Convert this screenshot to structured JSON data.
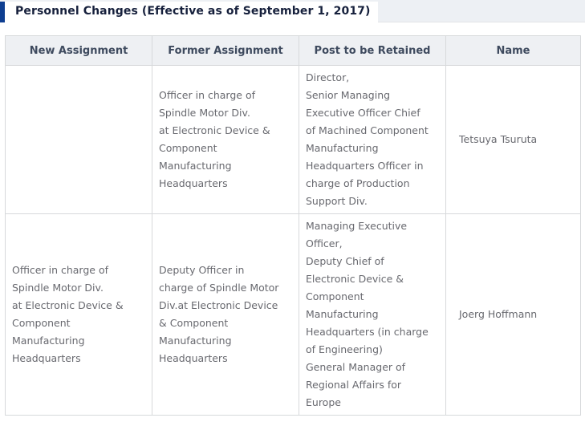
{
  "title": "Personnel Changes (Effective as of September 1, 2017)",
  "colors": {
    "accent_bar_blue": "#0e3e91",
    "title_text": "#16203c",
    "title_band_background": "#edf0f4",
    "table_header_background": "#eef0f3",
    "table_header_text": "#3e4a5e",
    "table_border": "#d7d9db",
    "cell_text": "#68696f"
  },
  "table": {
    "columns": [
      "New Assignment",
      "Former Assignment",
      "Post to be Retained",
      "Name"
    ],
    "rows": [
      {
        "new_assignment": "",
        "former_assignment": "Officer in charge of\nSpindle Motor Div.\nat Electronic Device &\nComponent\nManufacturing\nHeadquarters",
        "post_to_be_retained": "Director,\nSenior Managing\nExecutive Officer Chief\nof Machined Component\nManufacturing\nHeadquarters Officer in\ncharge of Production\nSupport Div.",
        "name": "Tetsuya Tsuruta"
      },
      {
        "new_assignment": "Officer in charge of\nSpindle Motor Div.\nat Electronic Device &\nComponent\nManufacturing\nHeadquarters",
        "former_assignment": "Deputy Officer in\ncharge of Spindle Motor\nDiv.at Electronic Device\n& Component\nManufacturing\nHeadquarters",
        "post_to_be_retained": "Managing Executive\nOfficer,\nDeputy Chief of\nElectronic Device &\nComponent\nManufacturing\nHeadquarters (in charge\nof Engineering)\nGeneral Manager of\nRegional Affairs for\nEurope",
        "name": "Joerg Hoffmann"
      }
    ]
  }
}
